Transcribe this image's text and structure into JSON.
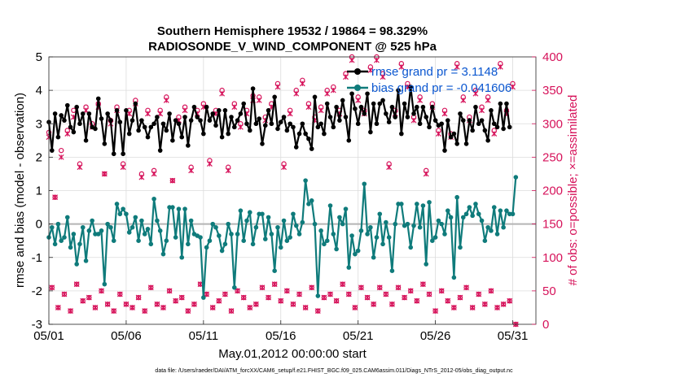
{
  "chart_data": {
    "type": "line",
    "title": "Southern Hemisphere 19532 / 19864 = 98.329%",
    "subtitle": "RADIOSONDE_V_WIND_COMPONENT @ 525 hPa",
    "xlabel": "May.01,2012 00:00:00 start",
    "ylabel": "rmse and bias (model - observation)",
    "y2label": "# of obs: o=possible; ×=assimilated",
    "footer": "data file: /Users/raeder/DAI/ATM_forcXX/CAM6_setup/f.e21.FHIST_BGC.f09_025.CAM6assim.011/Diags_NTrS_2012-05/obs_diag_output.nc",
    "xlim": [
      0,
      31.5
    ],
    "ylim": [
      -3,
      5
    ],
    "y2lim": [
      0,
      400
    ],
    "x_tick_values": [
      0,
      5,
      10,
      15,
      20,
      25,
      30
    ],
    "x_tick_labels": [
      "05/01",
      "05/06",
      "05/11",
      "05/16",
      "05/21",
      "05/26",
      "05/31"
    ],
    "y_tick_labels": [
      "-3",
      "-2",
      "-1",
      "0",
      "1",
      "2",
      "3",
      "4",
      "5"
    ],
    "y2_tick_labels": [
      "0",
      "50",
      "100",
      "150",
      "200",
      "250",
      "300",
      "350",
      "400"
    ],
    "colors": {
      "rmse": "#000000",
      "bias": "#0f7b7b",
      "obs": "#d6125a",
      "zero_line": "#b4b4b4",
      "legend_text": "#0b57d0"
    },
    "series": [
      {
        "name": "rmse grand pr = 3.1148",
        "values": [
          3.05,
          2.2,
          3.3,
          2.6,
          3.25,
          3.1,
          3.55,
          2.9,
          2.75,
          3.5,
          3.0,
          3.3,
          2.5,
          3.3,
          2.9,
          2.85,
          3.75,
          3.15,
          2.4,
          3.3,
          3.1,
          2.1,
          3.4,
          3.05,
          2.1,
          3.4,
          2.7,
          3.1,
          3.6,
          2.8,
          3.1,
          2.9,
          2.6,
          2.9,
          3.0,
          3.2,
          2.2,
          3.0,
          2.8,
          3.3,
          2.5,
          3.1,
          3.0,
          2.6,
          3.2,
          2.35,
          3.1,
          3.5,
          3.2,
          3.1,
          2.7,
          3.5,
          3.1,
          3.3,
          2.95,
          3.4,
          2.6,
          3.4,
          2.7,
          3.2,
          2.9,
          3.1,
          3.3,
          3.6,
          3.0,
          2.8,
          4.05,
          3.0,
          3.15,
          2.4,
          2.95,
          3.4,
          3.0,
          3.8,
          2.85,
          3.05,
          3.2,
          2.8,
          3.0,
          2.9,
          2.3,
          2.7,
          3.0,
          2.7,
          2.55,
          2.25,
          3.8,
          2.9,
          3.0,
          2.7,
          3.6,
          3.2,
          2.9,
          3.5,
          3.1,
          3.7,
          3.2,
          2.5,
          3.9,
          3.45,
          3.0,
          3.5,
          3.3,
          3.9,
          2.75,
          3.6,
          3.0,
          3.6,
          3.7,
          3.3,
          3.05,
          3.5,
          3.2,
          4.0,
          2.7,
          3.6,
          3.2,
          4.1,
          3.3,
          3.5,
          3.0,
          3.5,
          3.2,
          2.9,
          3.5,
          3.1,
          2.95,
          3.0,
          2.2,
          3.1,
          2.6,
          2.7,
          2.4,
          3.3,
          3.1,
          2.4,
          3.1,
          2.8,
          3.5,
          3.0,
          3.1,
          2.8,
          2.5,
          3.4,
          3.0,
          2.9,
          3.6,
          2.85,
          3.6,
          2.9
        ],
        "color": "#000000"
      },
      {
        "name": "bias grand pr = -0.041606",
        "values": [
          -0.4,
          -0.1,
          -0.6,
          0.0,
          -0.5,
          -0.4,
          0.2,
          -0.7,
          -0.3,
          -1.2,
          -0.6,
          -0.1,
          -1.1,
          -0.2,
          0.1,
          -0.3,
          -0.3,
          -0.2,
          -1.8,
          0.0,
          -0.1,
          -0.5,
          0.6,
          0.3,
          0.45,
          0.3,
          -0.25,
          -0.1,
          0.2,
          -0.5,
          0.1,
          -0.3,
          -0.15,
          -0.6,
          0.75,
          0.1,
          -0.2,
          -0.9,
          -0.5,
          0.5,
          0.5,
          -0.4,
          0.45,
          -1.0,
          0.45,
          -0.6,
          0.1,
          -0.3,
          -0.35,
          -0.4,
          -2.2,
          -0.7,
          -0.5,
          0.0,
          -0.1,
          -0.35,
          -0.8,
          -0.6,
          0.0,
          -0.3,
          -1.9,
          -0.3,
          0.4,
          -0.5,
          0.1,
          0.35,
          -0.6,
          -0.1,
          0.3,
          0.3,
          -0.45,
          0.2,
          -0.3,
          -1.4,
          -0.1,
          -0.7,
          0.1,
          -0.5,
          -0.4,
          0.3,
          -0.05,
          -0.3,
          0.05,
          1.3,
          0.6,
          0.7,
          0.0,
          -2.15,
          -0.2,
          -0.6,
          -0.5,
          0.55,
          -0.3,
          -0.75,
          0.2,
          0.0,
          0.45,
          -1.3,
          -0.35,
          -0.9,
          -0.8,
          -0.2,
          1.2,
          -0.3,
          -0.1,
          -1.0,
          -0.4,
          0.3,
          -0.6,
          0.05,
          -0.4,
          -1.4,
          0.0,
          0.6,
          0.6,
          -0.05,
          0.0,
          -0.7,
          -0.05,
          0.6,
          -0.1,
          0.55,
          -1.2,
          0.65,
          -0.5,
          -0.4,
          0.1,
          0.0,
          -0.3,
          0.4,
          0.2,
          -1.6,
          0.8,
          -0.7,
          0.2,
          0.3,
          0.5,
          0.25,
          0.6,
          0.3,
          0.1,
          -0.5,
          -0.1,
          -0.2,
          0.5,
          -0.3,
          0.4,
          -0.1,
          0.4,
          0.3,
          0.3,
          1.4
        ],
        "color": "#0f7b7b"
      },
      {
        "name": "obs possible (o)",
        "axis": "right",
        "values": [
          287,
          55,
          190,
          25,
          260,
          45,
          290,
          20,
          320,
          60,
          240,
          35,
          325,
          40,
          300,
          25,
          330,
          50,
          225,
          30,
          305,
          20,
          325,
          45,
          240,
          30,
          320,
          25,
          335,
          40,
          225,
          20,
          320,
          55,
          230,
          30,
          320,
          25,
          340,
          50,
          215,
          35,
          310,
          40,
          325,
          20,
          235,
          30,
          320,
          60,
          330,
          45,
          245,
          25,
          320,
          35,
          350,
          45,
          235,
          20,
          330,
          50,
          300,
          40,
          320,
          25,
          342,
          30,
          340,
          55,
          310,
          40,
          330,
          60,
          360,
          35,
          240,
          50,
          320,
          30,
          350,
          45,
          365,
          25,
          330,
          55,
          310,
          20,
          325,
          40,
          350,
          45,
          355,
          35,
          320,
          60,
          375,
          45,
          400,
          25,
          340,
          55,
          320,
          40,
          385,
          30,
          400,
          55,
          375,
          45,
          240,
          30,
          320,
          55,
          390,
          40,
          360,
          50,
          310,
          35,
          340,
          60,
          230,
          45,
          330,
          20,
          290,
          50,
          320,
          35,
          285,
          25,
          390,
          40,
          340,
          55,
          310,
          25,
          350,
          45,
          325,
          30,
          340,
          50,
          290,
          25,
          390,
          30,
          320,
          35,
          360,
          0
        ],
        "color": "#d6125a"
      },
      {
        "name": "obs assimilated (×)",
        "axis": "right",
        "values": [
          280,
          55,
          190,
          25,
          250,
          45,
          285,
          20,
          310,
          60,
          235,
          35,
          320,
          40,
          295,
          25,
          325,
          50,
          225,
          30,
          300,
          20,
          320,
          45,
          235,
          30,
          315,
          25,
          330,
          40,
          220,
          20,
          315,
          55,
          225,
          30,
          315,
          25,
          335,
          50,
          215,
          35,
          305,
          40,
          320,
          20,
          230,
          30,
          315,
          60,
          325,
          45,
          240,
          25,
          315,
          35,
          345,
          45,
          230,
          20,
          325,
          50,
          295,
          40,
          315,
          25,
          335,
          30,
          335,
          55,
          305,
          40,
          325,
          60,
          355,
          35,
          235,
          50,
          315,
          30,
          345,
          45,
          360,
          25,
          325,
          55,
          305,
          20,
          320,
          40,
          345,
          45,
          350,
          35,
          315,
          60,
          370,
          45,
          395,
          25,
          335,
          55,
          315,
          40,
          380,
          30,
          395,
          55,
          370,
          45,
          235,
          30,
          315,
          55,
          385,
          40,
          355,
          50,
          305,
          35,
          335,
          60,
          225,
          45,
          325,
          20,
          285,
          50,
          315,
          35,
          280,
          25,
          385,
          40,
          335,
          55,
          305,
          25,
          345,
          45,
          320,
          30,
          335,
          50,
          285,
          25,
          385,
          30,
          315,
          35,
          355,
          0
        ],
        "color": "#d6125a"
      }
    ]
  }
}
